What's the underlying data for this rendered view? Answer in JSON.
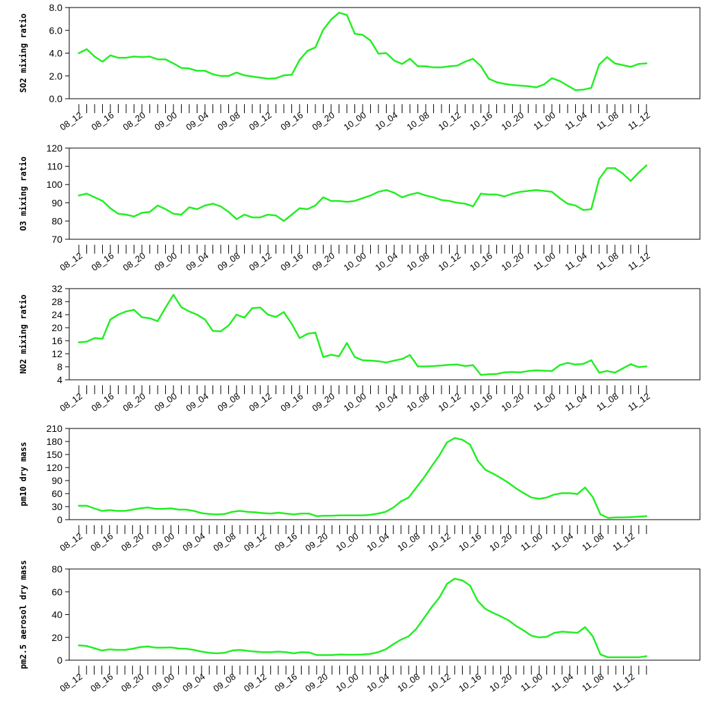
{
  "line_color": "#22ee22",
  "chart_data": [
    {
      "type": "line",
      "ylabel": "SO2 mixing ratio",
      "ylim": [
        0,
        8
      ],
      "yticks": [
        0,
        2,
        4,
        6,
        8
      ],
      "ytick_labels": [
        "0.0",
        "2.0",
        "4.0",
        "6.0",
        "8.0"
      ],
      "values": [
        4.0,
        4.35,
        3.7,
        3.25,
        3.8,
        3.6,
        3.6,
        3.7,
        3.65,
        3.7,
        3.45,
        3.45,
        3.1,
        2.7,
        2.65,
        2.45,
        2.45,
        2.15,
        2.0,
        2.0,
        2.3,
        2.05,
        1.95,
        1.85,
        1.75,
        1.8,
        2.05,
        2.1,
        3.4,
        4.2,
        4.5,
        6.05,
        6.95,
        7.55,
        7.35,
        5.7,
        5.6,
        5.1,
        3.95,
        4.0,
        3.35,
        3.05,
        3.5,
        2.85,
        2.85,
        2.75,
        2.75,
        2.85,
        2.9,
        3.25,
        3.5,
        2.85,
        1.75,
        1.45,
        1.3,
        1.2,
        1.15,
        1.1,
        1.0,
        1.25,
        1.8,
        1.55,
        1.15,
        0.75,
        0.8,
        0.95,
        3.0,
        3.65,
        3.1,
        2.95,
        2.8,
        3.05,
        3.1
      ]
    },
    {
      "type": "line",
      "ylabel": "O3 mixing ratio",
      "ylim": [
        70,
        120
      ],
      "yticks": [
        70,
        80,
        90,
        100,
        110,
        120
      ],
      "ytick_labels": [
        "70",
        "80",
        "90",
        "100",
        "110",
        "120"
      ],
      "values": [
        94,
        95,
        93,
        91,
        87,
        84,
        83.5,
        82.5,
        84.5,
        85,
        88.5,
        86.5,
        84,
        83.5,
        87.5,
        86.5,
        88.5,
        89.5,
        88,
        85,
        81,
        83.5,
        82,
        82,
        83.5,
        83,
        80,
        83.5,
        87,
        86.5,
        88.5,
        93,
        91,
        91,
        90.5,
        91,
        92.5,
        94,
        96,
        97,
        95.5,
        93,
        94.5,
        95.5,
        94,
        93,
        91.5,
        91,
        90,
        89.5,
        88,
        95,
        94.5,
        94.5,
        93.5,
        95,
        96,
        96.5,
        97,
        96.5,
        96,
        92.5,
        89.5,
        88.5,
        86,
        86.5,
        103,
        109,
        109,
        106,
        102,
        106.5,
        110.5
      ]
    },
    {
      "type": "line",
      "ylabel": "NO2 mixing ratio",
      "ylim": [
        4,
        32
      ],
      "yticks": [
        4,
        8,
        12,
        16,
        20,
        24,
        28,
        32
      ],
      "ytick_labels": [
        "4",
        "8",
        "12",
        "16",
        "20",
        "24",
        "28",
        "32"
      ],
      "values": [
        15.5,
        15.7,
        16.8,
        16.6,
        22.5,
        24,
        25,
        25.5,
        23.2,
        22.9,
        22,
        26.2,
        30.1,
        26.3,
        25,
        24,
        22.5,
        19,
        18.9,
        20.7,
        24,
        23.1,
        26,
        26.2,
        24,
        23.3,
        24.8,
        21.2,
        16.8,
        18.1,
        18.5,
        11,
        11.7,
        11.2,
        15.3,
        11,
        10,
        9.9,
        9.7,
        9.3,
        9.9,
        10.4,
        11.6,
        8.1,
        8.1,
        8.2,
        8.4,
        8.6,
        8.7,
        8.2,
        8.5,
        5.5,
        5.7,
        5.8,
        6.3,
        6.4,
        6.3,
        6.7,
        6.9,
        6.8,
        6.7,
        8.5,
        9.2,
        8.7,
        8.9,
        10,
        6.2,
        6.7,
        6.2,
        7.5,
        8.8,
        7.9,
        8.1
      ]
    },
    {
      "type": "line",
      "ylabel": "pm10 dry mass",
      "ylim": [
        0,
        210
      ],
      "yticks": [
        0,
        30,
        60,
        90,
        120,
        150,
        180,
        210
      ],
      "ytick_labels": [
        "0",
        "30",
        "60",
        "90",
        "120",
        "150",
        "180",
        "210"
      ],
      "values": [
        32,
        32,
        26,
        20,
        22,
        20,
        20,
        23,
        26,
        28,
        25,
        25,
        26,
        23,
        23,
        20,
        15,
        13,
        12,
        13,
        18,
        20,
        18,
        17,
        15,
        14,
        16,
        14,
        12,
        14,
        14,
        8,
        9,
        9,
        10,
        10,
        10,
        10,
        11,
        14,
        18,
        28,
        42,
        51,
        74,
        97,
        123,
        148,
        178,
        188,
        184,
        173,
        136,
        115,
        106,
        96,
        85,
        72,
        61,
        51,
        48,
        51,
        58,
        61,
        61,
        59,
        74,
        52,
        12,
        4,
        5,
        5,
        6,
        7,
        8
      ]
    },
    {
      "type": "line",
      "ylabel": "pm2.5 aerosol dry mass",
      "ylim": [
        0,
        80
      ],
      "yticks": [
        0,
        20,
        40,
        60,
        80
      ],
      "ytick_labels": [
        "0",
        "20",
        "40",
        "60",
        "80"
      ],
      "values": [
        13,
        12.5,
        10.5,
        8.5,
        9.5,
        9,
        9,
        10,
        11.5,
        12,
        11,
        11,
        11.2,
        10.2,
        10,
        9,
        7.5,
        6.5,
        6,
        6.5,
        8.5,
        9,
        8.2,
        7.5,
        7,
        7,
        7.5,
        7,
        6,
        7,
        6.8,
        4.5,
        4.5,
        4.5,
        5,
        4.8,
        4.8,
        5,
        5.5,
        7,
        9.5,
        14,
        18,
        21,
        27.5,
        37,
        46.5,
        55,
        67,
        71.5,
        70,
        65.5,
        52,
        45,
        41.5,
        38.5,
        35,
        30,
        26,
        21.5,
        20,
        20.5,
        24,
        25,
        24.5,
        24,
        29,
        21,
        5,
        2.5,
        2.5,
        2.5,
        2.5,
        2.5,
        3.5
      ]
    }
  ],
  "x_tick_labels": [
    "08_12",
    "08_16",
    "08_20",
    "09_00",
    "09_04",
    "09_08",
    "09_12",
    "09_16",
    "09_20",
    "10_00",
    "10_04",
    "10_08",
    "10_12",
    "10_16",
    "10_20",
    "11_00",
    "11_04",
    "11_08",
    "11_12"
  ]
}
